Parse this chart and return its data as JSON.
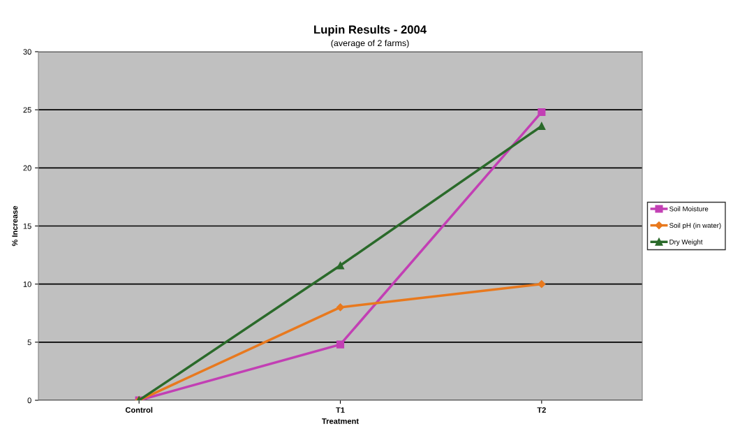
{
  "chart_data": {
    "type": "line",
    "title": "Lupin Results - 2004",
    "subtitle": "(average of 2 farms)",
    "xlabel": "Treatment",
    "ylabel": "% Increase",
    "categories": [
      "Control",
      "T1",
      "T2"
    ],
    "series": [
      {
        "name": "Soil Moisture",
        "color": "#c23fb4",
        "marker": "square",
        "values": [
          0,
          4.8,
          24.8
        ]
      },
      {
        "name": "Soil pH (in water)",
        "color": "#e8791e",
        "marker": "diamond",
        "values": [
          0,
          8.0,
          10.0
        ]
      },
      {
        "name": "Dry Weight",
        "color": "#2a6a2a",
        "marker": "triangle",
        "values": [
          0,
          11.6,
          23.6
        ]
      }
    ],
    "ylim": [
      0,
      30
    ],
    "yticks": [
      0,
      5,
      10,
      15,
      20,
      25,
      30
    ],
    "grid": "y",
    "legend": "right"
  }
}
